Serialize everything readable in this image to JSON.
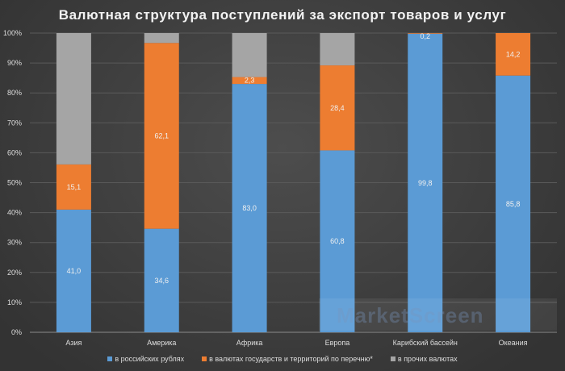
{
  "chart_data": {
    "type": "bar",
    "stacked": true,
    "title": "Валютная структура поступлений за экспорт товаров и услуг",
    "categories": [
      "Азия",
      "Америка",
      "Африка",
      "Европа",
      "Карибский бассейн",
      "Океания"
    ],
    "series": [
      {
        "name": "в российских рублях",
        "color": "#5b9bd5",
        "values": [
          41.0,
          34.6,
          83.0,
          60.8,
          99.8,
          85.8
        ],
        "labels": [
          "41,0",
          "34,6",
          "83,0",
          "60,8",
          "99,8",
          "85,8"
        ]
      },
      {
        "name": "в валютах государств и территорий по перечню*",
        "color": "#ed7d31",
        "values": [
          15.1,
          62.1,
          2.3,
          28.4,
          0.2,
          14.2
        ],
        "labels": [
          "15,1",
          "62,1",
          "2,3",
          "28,4",
          "0,2",
          "14,2"
        ]
      },
      {
        "name": "в прочих валютах",
        "color": "#a5a5a5",
        "values": [
          43.9,
          3.3,
          14.7,
          10.8,
          0,
          0
        ],
        "labels": [
          "",
          "",
          "",
          "",
          "",
          ""
        ]
      }
    ],
    "yticks": [
      "0%",
      "10%",
      "20%",
      "30%",
      "40%",
      "50%",
      "60%",
      "70%",
      "80%",
      "90%",
      "100%"
    ],
    "ylim": [
      0,
      100
    ],
    "grid": true,
    "legend": "bottom"
  },
  "watermark": "MarketScreen"
}
